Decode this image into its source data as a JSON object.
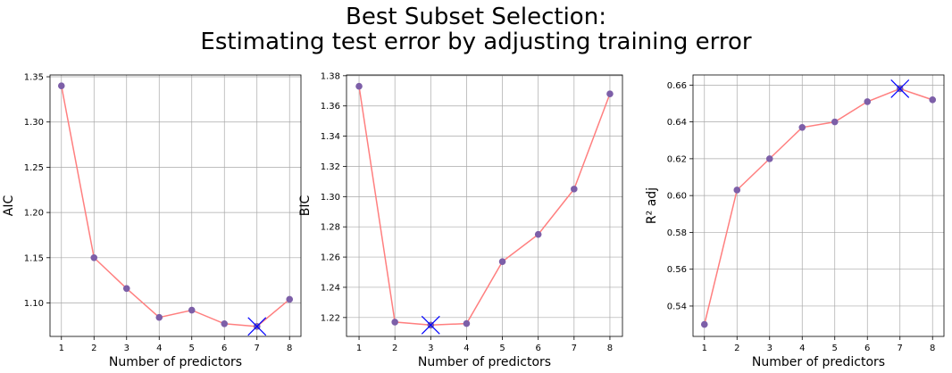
{
  "figure": {
    "title_line1": "Best Subset Selection:",
    "title_line2": "Estimating test error by adjusting training error"
  },
  "colors": {
    "line": "#ff7f7f",
    "marker": "#7d5fa8",
    "best_marker": "#0000ff",
    "grid": "#a9a9a9"
  },
  "chart_data": [
    {
      "type": "line",
      "xlabel": "Number of predictors",
      "ylabel": "AIC",
      "x": [
        1,
        2,
        3,
        4,
        5,
        6,
        7,
        8
      ],
      "y": [
        1.34,
        1.15,
        1.116,
        1.084,
        1.092,
        1.077,
        1.074,
        1.104
      ],
      "best_index": 6,
      "xlim": [
        0.65,
        8.35
      ],
      "ylim": [
        1.063,
        1.352
      ],
      "yticks": [
        1.1,
        1.15,
        1.2,
        1.25,
        1.3,
        1.35
      ],
      "ytick_labels": [
        "1.10",
        "1.15",
        "1.20",
        "1.25",
        "1.30",
        "1.35"
      ],
      "xticks": [
        1,
        2,
        3,
        4,
        5,
        6,
        7,
        8
      ],
      "grid": true
    },
    {
      "type": "line",
      "xlabel": "Number of predictors",
      "ylabel": "BIC",
      "x": [
        1,
        2,
        3,
        4,
        5,
        6,
        7,
        8
      ],
      "y": [
        1.373,
        1.217,
        1.215,
        1.216,
        1.257,
        1.275,
        1.305,
        1.368
      ],
      "best_index": 2,
      "xlim": [
        0.65,
        8.35
      ],
      "ylim": [
        1.2075,
        1.3805
      ],
      "yticks": [
        1.22,
        1.24,
        1.26,
        1.28,
        1.3,
        1.32,
        1.34,
        1.36,
        1.38
      ],
      "ytick_labels": [
        "1.22",
        "1.24",
        "1.26",
        "1.28",
        "1.30",
        "1.32",
        "1.34",
        "1.36",
        "1.38"
      ],
      "xticks": [
        1,
        2,
        3,
        4,
        5,
        6,
        7,
        8
      ],
      "grid": true
    },
    {
      "type": "line",
      "xlabel": "Number of predictors",
      "ylabel": "R² adj",
      "x": [
        1,
        2,
        3,
        4,
        5,
        6,
        7,
        8
      ],
      "y": [
        0.53,
        0.603,
        0.62,
        0.637,
        0.64,
        0.651,
        0.658,
        0.652
      ],
      "best_index": 6,
      "xlim": [
        0.65,
        8.35
      ],
      "ylim": [
        0.5235,
        0.6655
      ],
      "yticks": [
        0.54,
        0.56,
        0.58,
        0.6,
        0.62,
        0.64,
        0.66
      ],
      "ytick_labels": [
        "0.54",
        "0.56",
        "0.58",
        "0.60",
        "0.62",
        "0.64",
        "0.66"
      ],
      "xticks": [
        1,
        2,
        3,
        4,
        5,
        6,
        7,
        8
      ],
      "grid": true
    }
  ]
}
